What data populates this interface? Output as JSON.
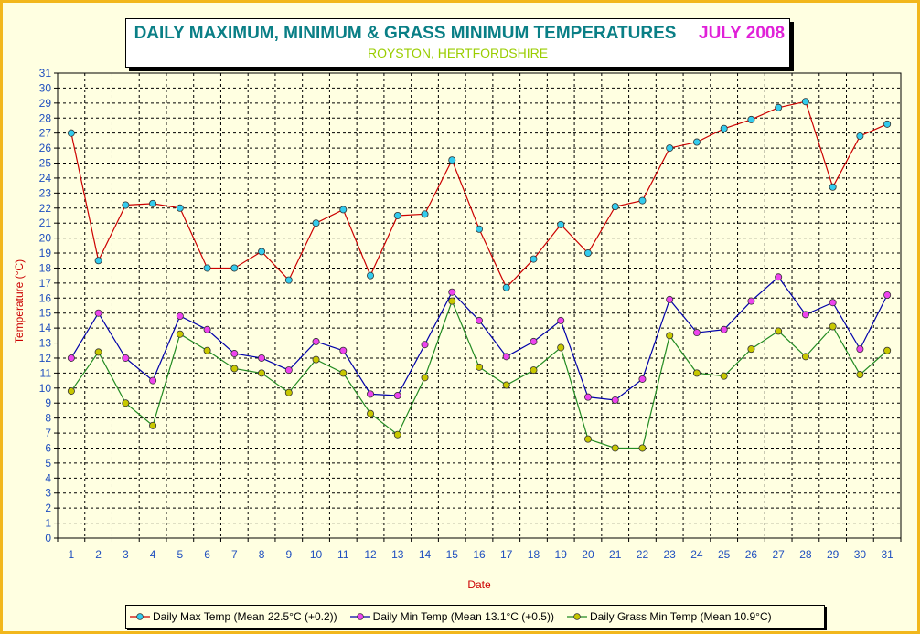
{
  "title": {
    "main": "DAILY MAXIMUM, MINIMUM & GRASS MINIMUM TEMPERATURES",
    "month": "JULY 2008",
    "subtitle": "ROYSTON, HERTFORDSHIRE"
  },
  "colors": {
    "frame": "#f2b71c",
    "background": "#ffffe1",
    "title_main": "#0a7f86",
    "title_month": "#e020d8",
    "subtitle": "#9acd00",
    "axis_label": "#cc0000",
    "tick_label": "#1f4fbf",
    "max_line": "#cc0000",
    "max_marker": "#33ccee",
    "min_line": "#0000aa",
    "min_marker": "#ee44ee",
    "grass_line": "#228b22",
    "grass_marker": "#c8c800"
  },
  "chart_data": {
    "type": "line",
    "xlabel": "Date",
    "ylabel": "Temperature (°C)",
    "x": [
      1,
      2,
      3,
      4,
      5,
      6,
      7,
      8,
      9,
      10,
      11,
      12,
      13,
      14,
      15,
      16,
      17,
      18,
      19,
      20,
      21,
      22,
      23,
      24,
      25,
      26,
      27,
      28,
      29,
      30,
      31
    ],
    "ylim": [
      0,
      31
    ],
    "yticks": [
      0,
      1,
      2,
      3,
      4,
      5,
      6,
      7,
      8,
      9,
      10,
      11,
      12,
      13,
      14,
      15,
      16,
      17,
      18,
      19,
      20,
      21,
      22,
      23,
      24,
      25,
      26,
      27,
      28,
      29,
      30,
      31
    ],
    "grid": true,
    "legend_position": "bottom",
    "series": [
      {
        "name": "Daily Max Temp (Mean 22.5°C (+0.2))",
        "line_color": "#cc0000",
        "marker_color": "#33ccee",
        "values": [
          27.0,
          18.5,
          22.2,
          22.3,
          22.0,
          18.0,
          18.0,
          19.1,
          17.2,
          21.0,
          21.9,
          17.5,
          21.5,
          21.6,
          25.2,
          20.6,
          16.7,
          18.6,
          20.9,
          19.0,
          22.1,
          22.5,
          26.0,
          26.4,
          27.3,
          27.9,
          28.7,
          29.1,
          23.4,
          26.8,
          27.6
        ]
      },
      {
        "name": "Daily Min Temp (Mean 13.1°C (+0.5))",
        "line_color": "#0000aa",
        "marker_color": "#ee44ee",
        "values": [
          12.0,
          15.0,
          12.0,
          10.5,
          14.8,
          13.9,
          12.3,
          12.0,
          11.2,
          13.1,
          12.5,
          9.6,
          9.5,
          12.9,
          16.4,
          14.5,
          12.1,
          13.1,
          14.5,
          9.4,
          9.2,
          10.6,
          15.9,
          13.7,
          13.9,
          15.8,
          17.4,
          14.9,
          15.7,
          12.6,
          16.2
        ]
      },
      {
        "name": "Daily Grass Min Temp (Mean 10.9°C)",
        "line_color": "#228b22",
        "marker_color": "#c8c800",
        "values": [
          9.8,
          12.4,
          9.0,
          7.5,
          13.6,
          12.5,
          11.3,
          11.0,
          9.7,
          11.9,
          11.0,
          8.3,
          6.9,
          10.7,
          15.8,
          11.4,
          10.2,
          11.2,
          12.7,
          6.6,
          6.0,
          6.0,
          13.5,
          11.0,
          10.8,
          12.6,
          13.8,
          12.1,
          14.1,
          10.9,
          12.5
        ]
      }
    ]
  }
}
